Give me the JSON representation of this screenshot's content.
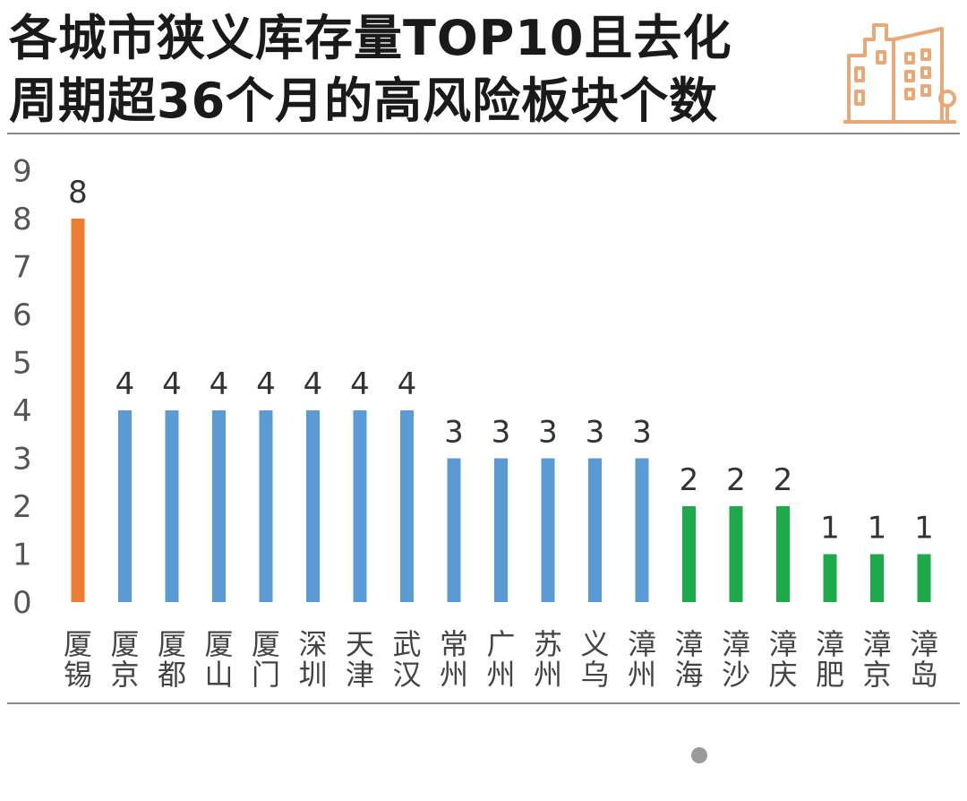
{
  "title": {
    "line1": "各城市狭义库存量TOP10且去化",
    "line2": "周期超36个月的高风险板块个数"
  },
  "icons": {
    "logo": "city-buildings-icon",
    "indicator": "dot-icon"
  },
  "colors": {
    "orange": "#ED7D31",
    "blue": "#5B9BD5",
    "green": "#1CAA4B"
  },
  "chart_data": {
    "type": "bar",
    "title": "各城市狭义库存量TOP10且去化周期超36个月的高风险板块个数",
    "categories": [
      [
        "厦",
        "锡"
      ],
      [
        "厦",
        "京"
      ],
      [
        "厦",
        "都"
      ],
      [
        "厦",
        "山"
      ],
      [
        "厦",
        "门"
      ],
      [
        "深",
        "圳"
      ],
      [
        "天",
        "津"
      ],
      [
        "武",
        "汉"
      ],
      [
        "常",
        "州"
      ],
      [
        "广",
        "州"
      ],
      [
        "苏",
        "州"
      ],
      [
        "义",
        "乌"
      ],
      [
        "漳",
        "州"
      ],
      [
        "漳",
        "海"
      ],
      [
        "漳",
        "沙"
      ],
      [
        "漳",
        "庆"
      ],
      [
        "漳",
        "肥"
      ],
      [
        "漳",
        "京"
      ],
      [
        "漳",
        "岛"
      ]
    ],
    "values": [
      8,
      4,
      4,
      4,
      4,
      4,
      4,
      4,
      3,
      3,
      3,
      3,
      3,
      2,
      2,
      2,
      1,
      1,
      1
    ],
    "bar_colors": [
      "orange",
      "blue",
      "blue",
      "blue",
      "blue",
      "blue",
      "blue",
      "blue",
      "blue",
      "blue",
      "blue",
      "blue",
      "blue",
      "green",
      "green",
      "green",
      "green",
      "green",
      "green"
    ],
    "yticks": [
      "0",
      "1",
      "2",
      "3",
      "4",
      "5",
      "6",
      "7",
      "8",
      "9"
    ],
    "ylim": [
      0,
      9
    ],
    "grid": false,
    "legend": "none"
  }
}
